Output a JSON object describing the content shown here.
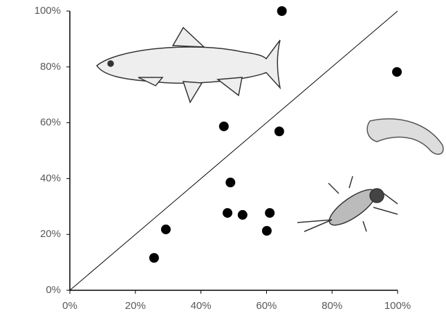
{
  "chart_data": {
    "type": "scatter",
    "x": [
      25.7,
      29.3,
      47.0,
      49.0,
      48.1,
      52.7,
      60.1,
      61.0,
      63.9,
      64.7,
      99.8
    ],
    "values": [
      11.6,
      21.8,
      58.7,
      38.6,
      27.7,
      27.0,
      21.3,
      27.7,
      56.9,
      100,
      78.2
    ],
    "color": "#000000",
    "xlim": [
      0,
      100
    ],
    "ylim": [
      0,
      100
    ],
    "xticks": [
      {
        "value": 0,
        "label": "0%"
      },
      {
        "value": 20,
        "label": "20%"
      },
      {
        "value": 40,
        "label": "40%"
      },
      {
        "value": 60,
        "label": "60%"
      },
      {
        "value": 80,
        "label": "80%"
      },
      {
        "value": 100,
        "label": "100%"
      }
    ],
    "yticks": [
      {
        "value": 0,
        "label": "0%"
      },
      {
        "value": 20,
        "label": "20%"
      },
      {
        "value": 40,
        "label": "40%"
      },
      {
        "value": 60,
        "label": "60%"
      },
      {
        "value": 80,
        "label": "80%"
      },
      {
        "value": 100,
        "label": "100%"
      }
    ],
    "grid": false
  }
}
